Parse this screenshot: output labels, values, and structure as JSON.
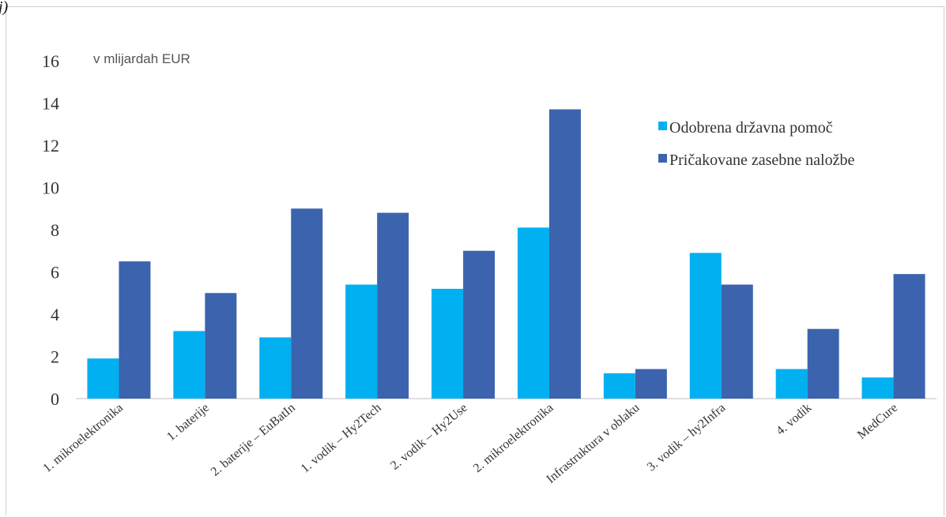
{
  "top_text": "j)",
  "chart_data": {
    "type": "bar",
    "unit_label": "v mlijardah EUR",
    "categories": [
      "1. mikroelektronika",
      "1. baterije",
      "2. baterije – EuBatIn",
      "1. vodik – Hy2Tech",
      "2. vodik – Hy2Use",
      "2. mikroelektronika",
      "Infrastruktura v oblaku",
      "3. vodik  – hy2Infra",
      "4. vodik",
      "MedCure"
    ],
    "series": [
      {
        "name": "Odobrena državna pomoč",
        "color": "#00B0F0",
        "values": [
          1.9,
          3.2,
          2.9,
          5.4,
          5.2,
          8.1,
          1.2,
          6.9,
          1.4,
          1.0
        ]
      },
      {
        "name": "Pričakovane zasebne naložbe",
        "color": "#3C64AE",
        "values": [
          6.5,
          5.0,
          9.0,
          8.8,
          7.0,
          13.7,
          1.4,
          5.4,
          3.3,
          5.9
        ]
      }
    ],
    "ylim": [
      0,
      16
    ],
    "yticks": [
      0,
      2,
      4,
      6,
      8,
      10,
      12,
      14,
      16
    ],
    "grid": false,
    "legend_position": "top-right"
  }
}
